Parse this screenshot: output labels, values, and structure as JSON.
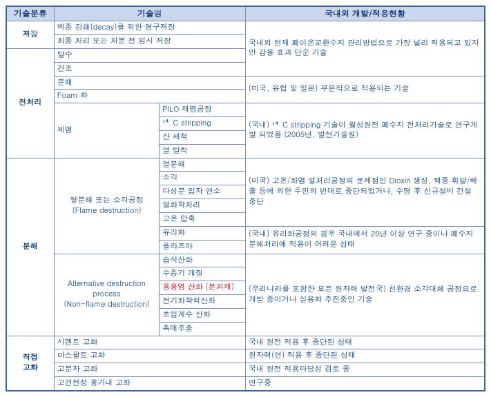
{
  "headers": {
    "cat": "기술분류",
    "tech": "기술명",
    "status": "국내외 개발/적용현황"
  },
  "rows": {
    "storage_cat": "저장",
    "storage1": "백종 감쇄(decay)를 위한 영구저장",
    "storage2": "최종 처리 또는 처분 전 임시 저장",
    "status1": "국내외 현재 폐이온교환수지 관리방법으로 가장 널리 적용되고 있지만 감용 효과 단순 기술",
    "pre_cat": "전처리",
    "pre1": "탈수",
    "pre2": "건조",
    "pre3": "분쇄",
    "pre4": "Foam 화",
    "pre5": "제염",
    "pre5a": "PILO 제염공정",
    "pre5b": "¹⁴C stripping",
    "pre5c": "산 세척",
    "pre5d": "열 탈착",
    "status2": "(미국, 유럽 및 일본) 부분적으로 적용되는 기술",
    "status3": "(국내) ¹⁴C stripping  기술이 월성원전 폐수지 전처리기술로 연구개발 되었음 (2005년, 발전기술원)",
    "dec_cat": "분해",
    "flame_group": "열분해 또는 소각공정\n(Flame destruction)",
    "flame1": "열분해",
    "flame2": "소각",
    "flame3": "다성분 입자 연소",
    "flame4": "열화학처리",
    "flame5": "고온 압축",
    "flame6": "유리화",
    "flame7": "플라즈마",
    "status4": "(미국) 고온/화염 열처리공정의 문제점인 Dioxin 생성, 핵종 휘발/배출 등에 의한 주민의 반대로 중단되었거나, 수명 후 신규설비 건설 중단",
    "status5": "(국내) 유리화공정의 경우 국내에서 20년 이상 연구 중이나 폐수지 분해처리에 적용이 어려운 상태",
    "alt_group": "Alternative destruction process\n(Non-flame destruction)",
    "alt1": "습식산화",
    "alt2": "수증기 개질",
    "alt3": "용융염 산화 (본과제)",
    "alt4": "전기화학적산화",
    "alt5": "초임계수 산화",
    "alt6": "촉매추출",
    "status6": "(우리나라를 포함한 모든 원자력 발전국) 친환경 소각대체 공정으로 개발 중이거나 실용화 추진중인 기술",
    "sol_cat": "직접\n고화",
    "sol1": "시멘트 고화",
    "sol2": "아스팔트 고화",
    "sol3": "고분자 고화",
    "sol4": "고건전성 용기내 고화",
    "status7": "국내 원전 적용 후 중단된 상태",
    "status8": "원자력(연) 적용 후 중단된 상태",
    "status9": "국내 원전 적용타당성 검토 중",
    "status10": "연구중"
  }
}
